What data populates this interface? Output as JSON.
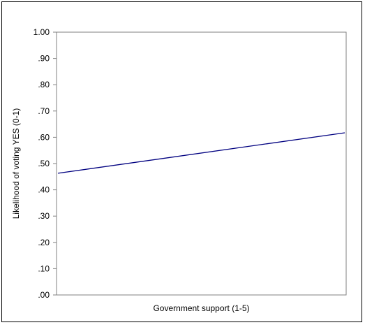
{
  "chart_data": {
    "type": "line",
    "title": "",
    "xlabel": "Government support (1-5)",
    "ylabel": "Likelihood of voting YES (0-1)",
    "ylim": [
      0,
      1
    ],
    "yticks": [
      ".00",
      ".10",
      ".20",
      ".30",
      ".40",
      ".50",
      ".60",
      ".70",
      ".80",
      ".90",
      "1.00"
    ],
    "x": [
      1,
      5
    ],
    "series": [
      {
        "values": [
          0.463,
          0.617
        ],
        "color": "#000080"
      }
    ],
    "grid": false,
    "legend": "none"
  }
}
